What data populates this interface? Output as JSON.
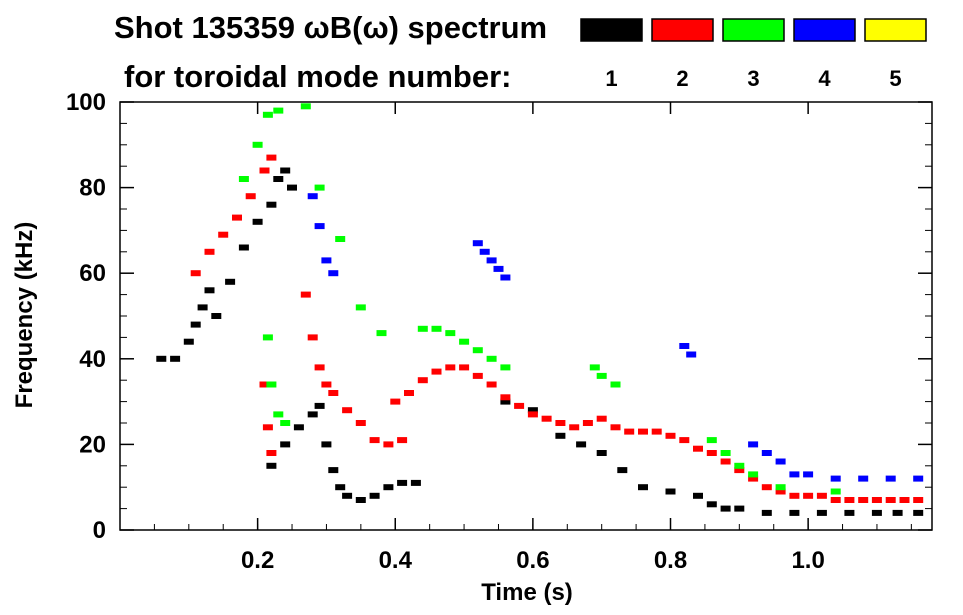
{
  "chart_data": {
    "type": "scatter",
    "title_line1": "Shot 135359 ωB(ω) spectrum",
    "title_line2": "for toroidal mode number:",
    "xlabel": "Time (s)",
    "ylabel": "Frequency (kHz)",
    "xlim": [
      0.0,
      1.18
    ],
    "ylim": [
      0,
      100
    ],
    "xticks": [
      {
        "value": 0.2,
        "label": "0.2"
      },
      {
        "value": 0.4,
        "label": "0.4"
      },
      {
        "value": 0.6,
        "label": "0.6"
      },
      {
        "value": 0.8,
        "label": "0.8"
      },
      {
        "value": 1.0,
        "label": "1.0"
      }
    ],
    "yticks": [
      {
        "value": 0,
        "label": "0"
      },
      {
        "value": 20,
        "label": "20"
      },
      {
        "value": 40,
        "label": "40"
      },
      {
        "value": 60,
        "label": "60"
      },
      {
        "value": 80,
        "label": "80"
      },
      {
        "value": 100,
        "label": "100"
      }
    ],
    "legend": [
      {
        "label": "1",
        "color": "#000000"
      },
      {
        "label": "2",
        "color": "#ff0000"
      },
      {
        "label": "3",
        "color": "#00ff00"
      },
      {
        "label": "4",
        "color": "#0000ff"
      },
      {
        "label": "5",
        "color": "#ffff00"
      }
    ],
    "series": [
      {
        "name": "1",
        "color": "#000000",
        "points": [
          [
            0.06,
            40
          ],
          [
            0.08,
            40
          ],
          [
            0.1,
            44
          ],
          [
            0.11,
            48
          ],
          [
            0.12,
            52
          ],
          [
            0.13,
            56
          ],
          [
            0.14,
            50
          ],
          [
            0.16,
            58
          ],
          [
            0.18,
            66
          ],
          [
            0.2,
            72
          ],
          [
            0.22,
            76
          ],
          [
            0.23,
            82
          ],
          [
            0.24,
            84
          ],
          [
            0.25,
            80
          ],
          [
            0.22,
            15
          ],
          [
            0.24,
            20
          ],
          [
            0.26,
            24
          ],
          [
            0.28,
            27
          ],
          [
            0.29,
            29
          ],
          [
            0.3,
            20
          ],
          [
            0.31,
            14
          ],
          [
            0.32,
            10
          ],
          [
            0.33,
            8
          ],
          [
            0.35,
            7
          ],
          [
            0.37,
            8
          ],
          [
            0.39,
            10
          ],
          [
            0.41,
            11
          ],
          [
            0.43,
            11
          ],
          [
            0.56,
            30
          ],
          [
            0.6,
            28
          ],
          [
            0.64,
            22
          ],
          [
            0.67,
            20
          ],
          [
            0.7,
            18
          ],
          [
            0.73,
            14
          ],
          [
            0.76,
            10
          ],
          [
            0.8,
            9
          ],
          [
            0.84,
            8
          ],
          [
            0.86,
            6
          ],
          [
            0.88,
            5
          ],
          [
            0.9,
            5
          ],
          [
            0.94,
            4
          ],
          [
            0.98,
            4
          ],
          [
            1.02,
            4
          ],
          [
            1.06,
            4
          ],
          [
            1.1,
            4
          ],
          [
            1.13,
            4
          ],
          [
            1.16,
            4
          ]
        ]
      },
      {
        "name": "2",
        "color": "#ff0000",
        "points": [
          [
            0.11,
            60
          ],
          [
            0.13,
            65
          ],
          [
            0.15,
            69
          ],
          [
            0.17,
            73
          ],
          [
            0.19,
            78
          ],
          [
            0.21,
            84
          ],
          [
            0.22,
            87
          ],
          [
            0.21,
            34
          ],
          [
            0.215,
            24
          ],
          [
            0.22,
            18
          ],
          [
            0.27,
            55
          ],
          [
            0.28,
            45
          ],
          [
            0.29,
            38
          ],
          [
            0.3,
            34
          ],
          [
            0.31,
            32
          ],
          [
            0.33,
            28
          ],
          [
            0.35,
            25
          ],
          [
            0.37,
            21
          ],
          [
            0.39,
            20
          ],
          [
            0.41,
            21
          ],
          [
            0.4,
            30
          ],
          [
            0.42,
            32
          ],
          [
            0.44,
            35
          ],
          [
            0.46,
            37
          ],
          [
            0.48,
            38
          ],
          [
            0.5,
            38
          ],
          [
            0.52,
            36
          ],
          [
            0.54,
            34
          ],
          [
            0.56,
            31
          ],
          [
            0.58,
            29
          ],
          [
            0.6,
            27
          ],
          [
            0.62,
            26
          ],
          [
            0.64,
            25
          ],
          [
            0.66,
            24
          ],
          [
            0.68,
            25
          ],
          [
            0.7,
            26
          ],
          [
            0.72,
            24
          ],
          [
            0.74,
            23
          ],
          [
            0.76,
            23
          ],
          [
            0.78,
            23
          ],
          [
            0.8,
            22
          ],
          [
            0.82,
            21
          ],
          [
            0.84,
            19
          ],
          [
            0.86,
            18
          ],
          [
            0.88,
            16
          ],
          [
            0.9,
            14
          ],
          [
            0.92,
            12
          ],
          [
            0.94,
            10
          ],
          [
            0.96,
            9
          ],
          [
            0.98,
            8
          ],
          [
            1.0,
            8
          ],
          [
            1.02,
            8
          ],
          [
            1.04,
            7
          ],
          [
            1.06,
            7
          ],
          [
            1.08,
            7
          ],
          [
            1.1,
            7
          ],
          [
            1.12,
            7
          ],
          [
            1.14,
            7
          ],
          [
            1.16,
            7
          ]
        ]
      },
      {
        "name": "3",
        "color": "#00ff00",
        "points": [
          [
            0.18,
            82
          ],
          [
            0.2,
            90
          ],
          [
            0.215,
            97
          ],
          [
            0.23,
            98
          ],
          [
            0.27,
            99
          ],
          [
            0.215,
            45
          ],
          [
            0.22,
            34
          ],
          [
            0.23,
            27
          ],
          [
            0.24,
            25
          ],
          [
            0.29,
            80
          ],
          [
            0.32,
            68
          ],
          [
            0.35,
            52
          ],
          [
            0.38,
            46
          ],
          [
            0.44,
            47
          ],
          [
            0.46,
            47
          ],
          [
            0.48,
            46
          ],
          [
            0.5,
            44
          ],
          [
            0.52,
            42
          ],
          [
            0.54,
            40
          ],
          [
            0.56,
            38
          ],
          [
            0.69,
            38
          ],
          [
            0.7,
            36
          ],
          [
            0.72,
            34
          ],
          [
            0.86,
            21
          ],
          [
            0.88,
            18
          ],
          [
            0.9,
            15
          ],
          [
            0.92,
            13
          ],
          [
            0.96,
            10
          ],
          [
            1.04,
            9
          ]
        ]
      },
      {
        "name": "4",
        "color": "#0000ff",
        "points": [
          [
            0.28,
            78
          ],
          [
            0.29,
            71
          ],
          [
            0.3,
            63
          ],
          [
            0.31,
            60
          ],
          [
            0.52,
            67
          ],
          [
            0.53,
            65
          ],
          [
            0.54,
            63
          ],
          [
            0.55,
            61
          ],
          [
            0.56,
            59
          ],
          [
            0.82,
            43
          ],
          [
            0.83,
            41
          ],
          [
            0.92,
            20
          ],
          [
            0.94,
            18
          ],
          [
            0.96,
            16
          ],
          [
            0.98,
            13
          ],
          [
            1.0,
            13
          ],
          [
            1.04,
            12
          ],
          [
            1.08,
            12
          ],
          [
            1.12,
            12
          ],
          [
            1.16,
            12
          ]
        ]
      }
    ]
  }
}
